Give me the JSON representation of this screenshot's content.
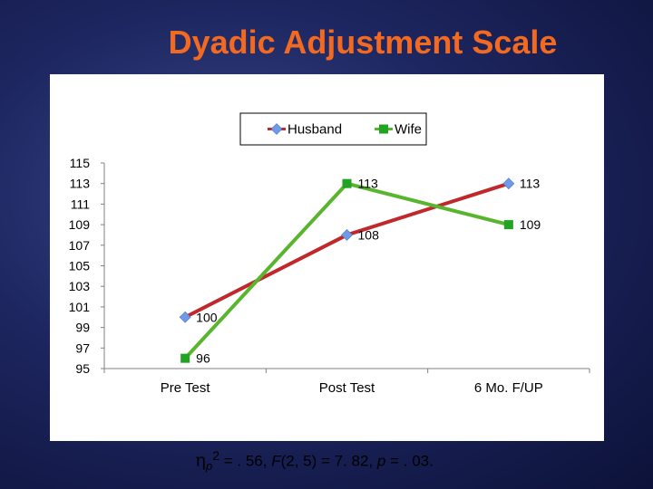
{
  "slide": {
    "title": "Dyadic Adjustment Scale"
  },
  "footer": {
    "eta_symbol": "η",
    "eta_subscript": "p",
    "eta_superscript": "2",
    "stat_text_1": " = . 56, ",
    "f_symbol": "F",
    "stat_text_2": "(2, 5) = 7. 82, ",
    "p_symbol": "p",
    "stat_text_3": " = . 03."
  },
  "chart_data": {
    "type": "line",
    "categories": [
      "Pre Test",
      "Post Test",
      "6 Mo. F/UP"
    ],
    "series": [
      {
        "name": "Husband",
        "values": [
          100,
          108,
          113
        ],
        "line_color": "#c0282b",
        "marker_color": "#6f9ae8",
        "marker": "diamond"
      },
      {
        "name": "Wife",
        "values": [
          96,
          113,
          109
        ],
        "line_color": "#59b52d",
        "marker_color": "#22a322",
        "marker": "square"
      }
    ],
    "ylim": [
      95,
      115
    ],
    "yticks": [
      115,
      113,
      111,
      109,
      107,
      105,
      103,
      101,
      99,
      97,
      95
    ],
    "xlabel": "",
    "ylabel": "",
    "grid": false,
    "legend_position": "top-center",
    "data_labels": true
  }
}
